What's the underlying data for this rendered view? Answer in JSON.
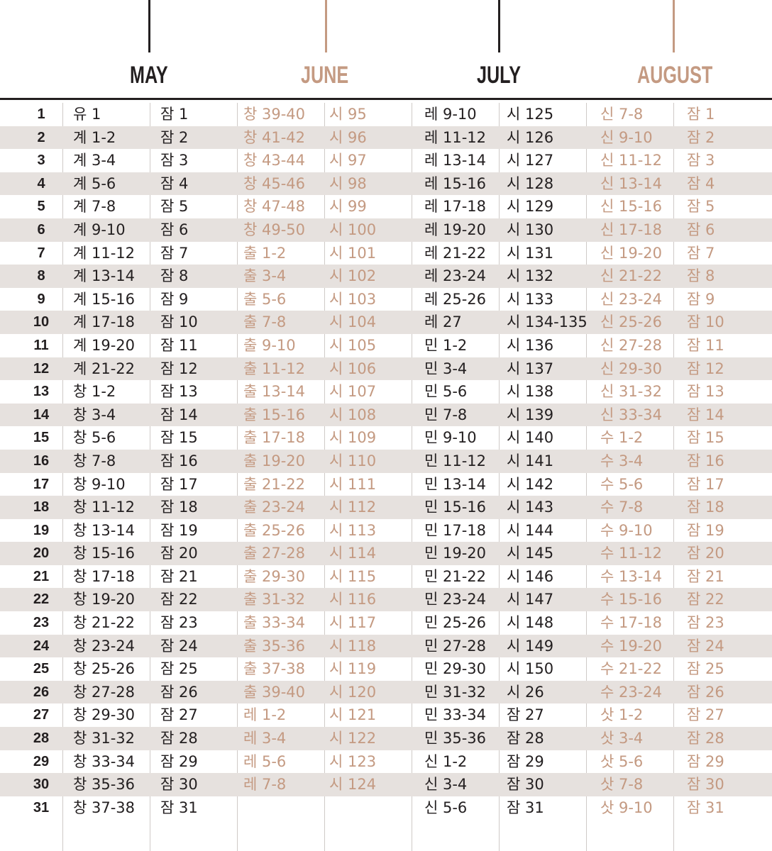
{
  "months": [
    {
      "name": "MAY",
      "tone": "dark"
    },
    {
      "name": "JUNE",
      "tone": "tan"
    },
    {
      "name": "JULY",
      "tone": "dark"
    },
    {
      "name": "AUGUST",
      "tone": "tan"
    }
  ],
  "colors": {
    "dark": "#231f20",
    "tan": "#c49a82",
    "shade": "#e6e1de"
  },
  "rows": [
    [
      "1",
      "유 1",
      "잠 1",
      "창 39-40",
      "시 95",
      "레 9-10",
      "시 125",
      "신 7-8",
      "잠 1"
    ],
    [
      "2",
      "계 1-2",
      "잠 2",
      "창 41-42",
      "시 96",
      "레 11-12",
      "시 126",
      "신 9-10",
      "잠 2"
    ],
    [
      "3",
      "계 3-4",
      "잠 3",
      "창 43-44",
      "시 97",
      "레 13-14",
      "시 127",
      "신 11-12",
      "잠 3"
    ],
    [
      "4",
      "계 5-6",
      "잠 4",
      "창 45-46",
      "시 98",
      "레 15-16",
      "시 128",
      "신 13-14",
      "잠 4"
    ],
    [
      "5",
      "계 7-8",
      "잠 5",
      "창 47-48",
      "시 99",
      "레 17-18",
      "시 129",
      "신 15-16",
      "잠 5"
    ],
    [
      "6",
      "계 9-10",
      "잠 6",
      "창 49-50",
      "시 100",
      "레 19-20",
      "시 130",
      "신 17-18",
      "잠 6"
    ],
    [
      "7",
      "계 11-12",
      "잠 7",
      "출 1-2",
      "시 101",
      "레 21-22",
      "시 131",
      "신 19-20",
      "잠 7"
    ],
    [
      "8",
      "계 13-14",
      "잠 8",
      "출 3-4",
      "시 102",
      "레 23-24",
      "시 132",
      "신 21-22",
      "잠 8"
    ],
    [
      "9",
      "계 15-16",
      "잠 9",
      "출 5-6",
      "시 103",
      "레 25-26",
      "시 133",
      "신 23-24",
      "잠 9"
    ],
    [
      "10",
      "계 17-18",
      "잠 10",
      "출 7-8",
      "시 104",
      "레 27",
      "시 134-135",
      "신 25-26",
      "잠 10"
    ],
    [
      "11",
      "계 19-20",
      "잠 11",
      "출 9-10",
      "시 105",
      "민 1-2",
      "시 136",
      "신 27-28",
      "잠 11"
    ],
    [
      "12",
      "계 21-22",
      "잠 12",
      "출 11-12",
      "시 106",
      "민 3-4",
      "시 137",
      "신 29-30",
      "잠 12"
    ],
    [
      "13",
      "창 1-2",
      "잠 13",
      "출 13-14",
      "시 107",
      "민 5-6",
      "시 138",
      "신 31-32",
      "잠 13"
    ],
    [
      "14",
      "창 3-4",
      "잠 14",
      "출 15-16",
      "시 108",
      "민 7-8",
      "시 139",
      "신 33-34",
      "잠 14"
    ],
    [
      "15",
      "창 5-6",
      "잠 15",
      "출 17-18",
      "시 109",
      "민 9-10",
      "시 140",
      "수 1-2",
      "잠 15"
    ],
    [
      "16",
      "창 7-8",
      "잠 16",
      "출 19-20",
      "시 110",
      "민 11-12",
      "시 141",
      "수 3-4",
      "잠 16"
    ],
    [
      "17",
      "창 9-10",
      "잠 17",
      "출 21-22",
      "시 111",
      "민 13-14",
      "시 142",
      "수 5-6",
      "잠 17"
    ],
    [
      "18",
      "창 11-12",
      "잠 18",
      "출 23-24",
      "시 112",
      "민 15-16",
      "시 143",
      "수 7-8",
      "잠 18"
    ],
    [
      "19",
      "창 13-14",
      "잠 19",
      "출 25-26",
      "시 113",
      "민 17-18",
      "시 144",
      "수  9-10",
      "잠 19"
    ],
    [
      "20",
      "창 15-16",
      "잠 20",
      "출 27-28",
      "시 114",
      "민 19-20",
      "시 145",
      "수 11-12",
      "잠 20"
    ],
    [
      "21",
      "창 17-18",
      "잠 21",
      "출 29-30",
      "시 115",
      "민 21-22",
      "시 146",
      "수 13-14",
      "잠 21"
    ],
    [
      "22",
      "창 19-20",
      "잠 22",
      "출 31-32",
      "시 116",
      "민 23-24",
      "시 147",
      "수 15-16",
      "잠 22"
    ],
    [
      "23",
      "창 21-22",
      "잠 23",
      "출 33-34",
      "시 117",
      "민 25-26",
      "시 148",
      "수 17-18",
      "잠 23"
    ],
    [
      "24",
      "창 23-24",
      "잠 24",
      "출 35-36",
      "시 118",
      "민 27-28",
      "시 149",
      "수 19-20",
      "잠 24"
    ],
    [
      "25",
      "창 25-26",
      "잠 25",
      "출 37-38",
      "시 119",
      "민 29-30",
      "시 150",
      "수 21-22",
      "잠 25"
    ],
    [
      "26",
      "창 27-28",
      "잠 26",
      "출 39-40",
      "시 120",
      "민 31-32",
      "시 26",
      "수 23-24",
      "잠 26"
    ],
    [
      "27",
      "창 29-30",
      "잠 27",
      "레 1-2",
      "시 121",
      "민 33-34",
      "잠 27",
      "삿 1-2",
      "잠 27"
    ],
    [
      "28",
      "창 31-32",
      "잠 28",
      "레 3-4",
      "시 122",
      "민 35-36",
      "잠 28",
      "삿 3-4",
      "잠 28"
    ],
    [
      "29",
      "창 33-34",
      "잠 29",
      "레 5-6",
      "시 123",
      "신 1-2",
      "잠 29",
      "삿 5-6",
      "잠 29"
    ],
    [
      "30",
      "창 35-36",
      "잠 30",
      "레 7-8",
      "시 124",
      "신 3-4",
      "잠 30",
      "삿 7-8",
      "잠 30"
    ],
    [
      "31",
      "창 37-38",
      "잠 31",
      "",
      "",
      "신 5-6",
      "잠 31",
      "삿 9-10",
      "잠 31"
    ]
  ]
}
